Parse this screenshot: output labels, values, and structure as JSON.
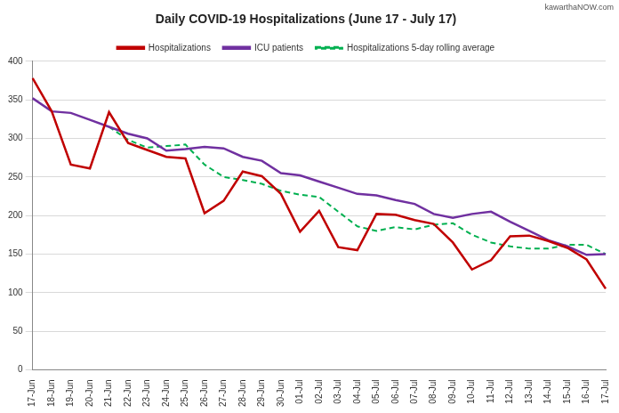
{
  "chart_data": {
    "type": "line",
    "title": "Daily COVID-19 Hospitalizations (June 17 - July 17)",
    "annotations": [
      "kawarthaNOW.com"
    ],
    "categories": [
      "17-Jun",
      "18-Jun",
      "19-Jun",
      "20-Jun",
      "21-Jun",
      "22-Jun",
      "23-Jun",
      "24-Jun",
      "25-Jun",
      "26-Jun",
      "27-Jun",
      "28-Jun",
      "29-Jun",
      "30-Jun",
      "01-Jul",
      "02-Jul",
      "03-Jul",
      "04-Jul",
      "05-Jul",
      "06-Jul",
      "07-Jul",
      "08-Jul",
      "09-Jul",
      "10-Jul",
      "11-Jul",
      "12-Jul",
      "13-Jul",
      "14-Jul",
      "15-Jul",
      "16-Jul",
      "17-Jul"
    ],
    "series": [
      {
        "name": "Hospitalizations",
        "color": "#c00000",
        "line_style": "solid",
        "marker": "none",
        "values": [
          378,
          335,
          266,
          261,
          334,
          294,
          285,
          276,
          274,
          203,
          219,
          257,
          251,
          228,
          179,
          206,
          159,
          155,
          202,
          201,
          194,
          189,
          165,
          130,
          142,
          173,
          174,
          167,
          158,
          143,
          105
        ]
      },
      {
        "name": "ICU patients",
        "color": "#7030a0",
        "line_style": "solid",
        "marker": "none",
        "values": [
          352,
          335,
          333,
          324,
          315,
          306,
          300,
          284,
          286,
          289,
          287,
          276,
          271,
          255,
          252,
          244,
          236,
          228,
          226,
          220,
          215,
          202,
          197,
          202,
          205,
          192,
          180,
          168,
          160,
          149,
          150
        ]
      },
      {
        "name": "Hospitalizations 5-day rolling average",
        "color": "#00b050",
        "line_style": "dashed",
        "marker": "none",
        "values": [
          null,
          null,
          null,
          null,
          315,
          298,
          288,
          290,
          292,
          266,
          250,
          246,
          241,
          232,
          227,
          224,
          205,
          186,
          180,
          185,
          182,
          188,
          190,
          175,
          165,
          160,
          157,
          157,
          162,
          162,
          150
        ]
      }
    ],
    "ylim": [
      0,
      400
    ],
    "yticks": [
      0,
      50,
      100,
      150,
      200,
      250,
      300,
      350,
      400
    ],
    "grid": true,
    "legend": "top"
  }
}
